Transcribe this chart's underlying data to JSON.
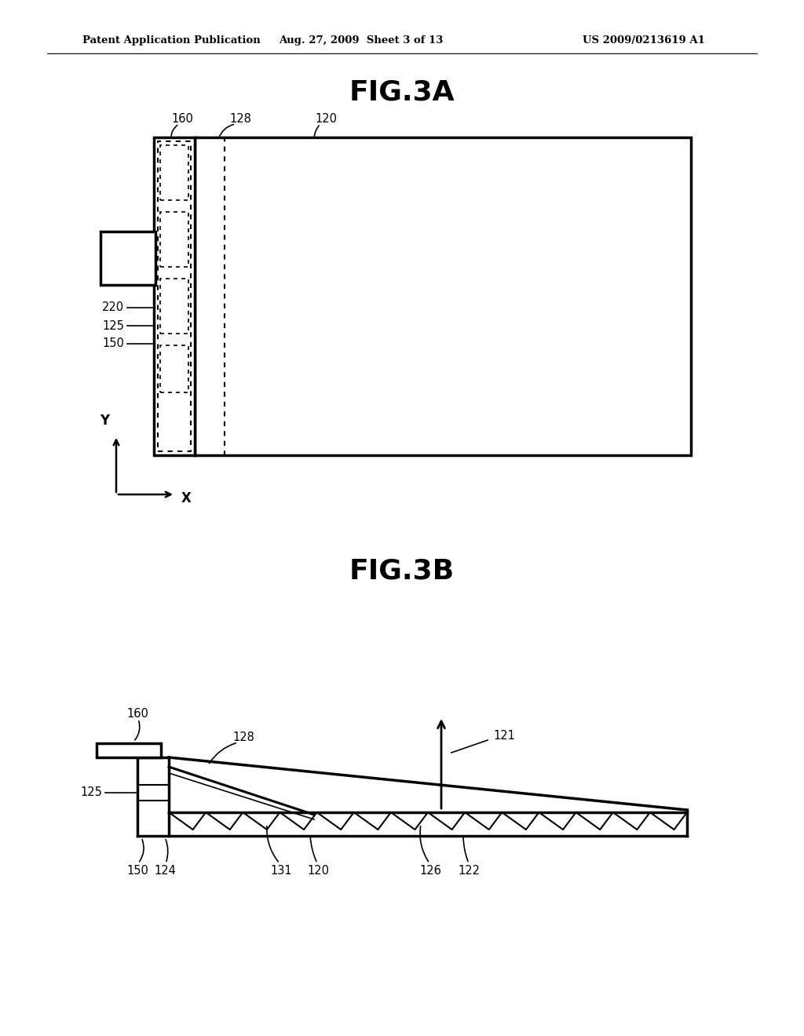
{
  "bg_color": "#ffffff",
  "header_left": "Patent Application Publication",
  "header_mid": "Aug. 27, 2009  Sheet 3 of 13",
  "header_right": "US 2009/0213619 A1",
  "fig3a_title": "FIG.3A",
  "fig3b_title": "FIG.3B"
}
